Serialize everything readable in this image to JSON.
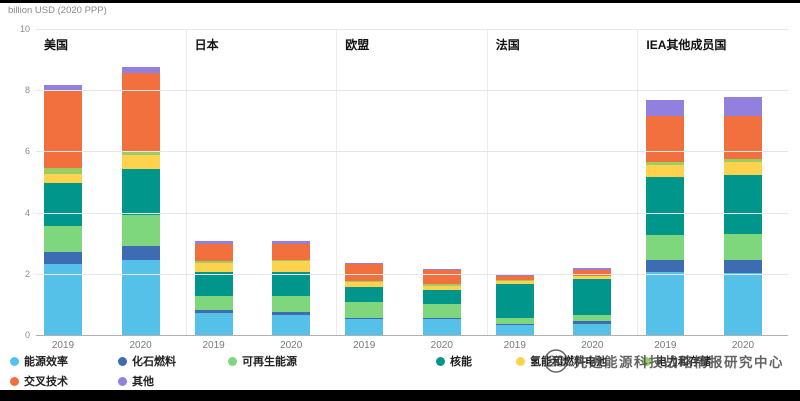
{
  "header": {
    "unit_label": "billion USD (2020 PPP)"
  },
  "watermark": {
    "text": "先进能源科技战略情报研究中心"
  },
  "chart_data": {
    "type": "bar",
    "stacked": true,
    "title": "",
    "ylabel": "billion USD (2020 PPP)",
    "ylim": [
      0,
      10
    ],
    "yticks": [
      0,
      2,
      4,
      6,
      8,
      10
    ],
    "grid": true,
    "legend_position": "bottom",
    "series": [
      "能源效率",
      "化石燃料",
      "可再生能源",
      "核能",
      "氢能和燃料电池",
      "电力和存储",
      "交叉技术",
      "其他"
    ],
    "colors": [
      "#56c1e8",
      "#3d6cb3",
      "#7ed67d",
      "#00968b",
      "#ffd24d",
      "#9acd62",
      "#f2703e",
      "#9180dd"
    ],
    "x_labels": [
      "2019",
      "2020"
    ],
    "groups": [
      {
        "title": "美国",
        "bars": [
          {
            "label": "2019",
            "total": 8.2,
            "values": [
              2.35,
              0.4,
              0.85,
              1.4,
              0.3,
              0.2,
              2.55,
              0.15
            ]
          },
          {
            "label": "2020",
            "total": 8.8,
            "values": [
              2.5,
              0.45,
              1.0,
              1.5,
              0.45,
              0.1,
              2.6,
              0.2
            ]
          }
        ]
      },
      {
        "title": "日本",
        "bars": [
          {
            "label": "2019",
            "total": 3.1,
            "values": [
              0.75,
              0.1,
              0.45,
              0.8,
              0.3,
              0.05,
              0.55,
              0.1
            ]
          },
          {
            "label": "2020",
            "total": 3.1,
            "values": [
              0.7,
              0.1,
              0.5,
              0.8,
              0.35,
              0.05,
              0.5,
              0.1
            ]
          }
        ]
      },
      {
        "title": "欧盟",
        "bars": [
          {
            "label": "2019",
            "total": 2.4,
            "values": [
              0.55,
              0.05,
              0.5,
              0.5,
              0.15,
              0.05,
              0.55,
              0.05
            ]
          },
          {
            "label": "2020",
            "total": 2.2,
            "values": [
              0.55,
              0.05,
              0.45,
              0.45,
              0.15,
              0.05,
              0.45,
              0.05
            ]
          }
        ]
      },
      {
        "title": "法国",
        "bars": [
          {
            "label": "2019",
            "total": 2.0,
            "values": [
              0.35,
              0.05,
              0.2,
              1.1,
              0.1,
              0.02,
              0.15,
              0.05
            ]
          },
          {
            "label": "2020",
            "total": 2.2,
            "values": [
              0.4,
              0.1,
              0.2,
              1.15,
              0.1,
              0.02,
              0.2,
              0.05
            ]
          }
        ]
      },
      {
        "title": "IEA其他成员国",
        "bars": [
          {
            "label": "2019",
            "total": 7.7,
            "values": [
              2.1,
              0.4,
              0.8,
              1.9,
              0.4,
              0.1,
              1.5,
              0.5
            ]
          },
          {
            "label": "2020",
            "total": 7.8,
            "values": [
              2.05,
              0.45,
              0.85,
              1.9,
              0.45,
              0.1,
              1.4,
              0.6
            ]
          }
        ]
      }
    ]
  }
}
